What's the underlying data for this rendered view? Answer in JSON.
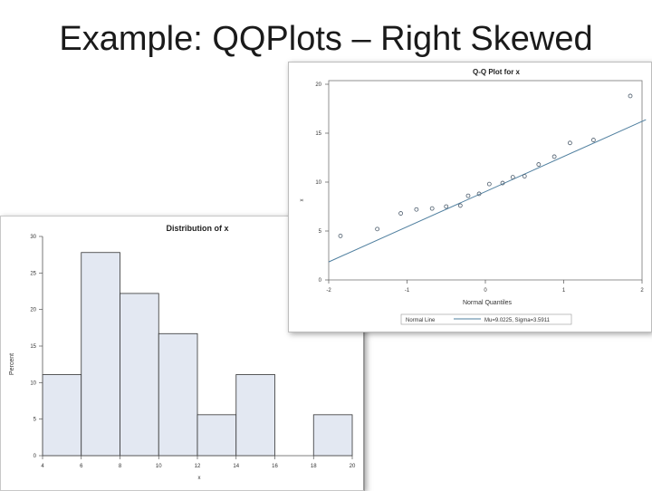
{
  "slide": {
    "title": "Example: QQPlots – Right Skewed"
  },
  "chart_data": [
    {
      "type": "bar",
      "title": "Distribution of x",
      "xlabel": "x",
      "ylabel": "Percent",
      "bin_edges": [
        4,
        6,
        8,
        10,
        12,
        14,
        16,
        18,
        20
      ],
      "values": [
        11.1,
        27.8,
        22.2,
        16.7,
        5.6,
        11.1,
        0,
        5.6
      ],
      "xticks": [
        "4",
        "6",
        "8",
        "10",
        "12",
        "14",
        "16",
        "18",
        "20"
      ],
      "yticks": [
        "0",
        "5",
        "10",
        "15",
        "20",
        "25",
        "30"
      ],
      "xlim": [
        4,
        20
      ],
      "ylim": [
        0,
        30
      ],
      "bar_color": "#e3e8f2"
    },
    {
      "type": "scatter",
      "title": "Q-Q Plot for x",
      "xlabel": "Normal Quantiles",
      "ylabel": "x",
      "xticks": [
        "-2",
        "-1",
        "0",
        "1",
        "2"
      ],
      "yticks": [
        "0",
        "5",
        "10",
        "15",
        "20"
      ],
      "xlim": [
        -2,
        2
      ],
      "ylim": [
        0,
        20
      ],
      "points": [
        {
          "x": -1.85,
          "y": 4.5
        },
        {
          "x": -1.38,
          "y": 5.2
        },
        {
          "x": -1.08,
          "y": 6.8
        },
        {
          "x": -0.88,
          "y": 7.2
        },
        {
          "x": -0.68,
          "y": 7.3
        },
        {
          "x": -0.5,
          "y": 7.5
        },
        {
          "x": -0.32,
          "y": 7.6
        },
        {
          "x": -0.22,
          "y": 8.6
        },
        {
          "x": -0.08,
          "y": 8.8
        },
        {
          "x": 0.05,
          "y": 9.8
        },
        {
          "x": 0.22,
          "y": 9.9
        },
        {
          "x": 0.35,
          "y": 10.5
        },
        {
          "x": 0.5,
          "y": 10.6
        },
        {
          "x": 0.68,
          "y": 11.8
        },
        {
          "x": 0.88,
          "y": 12.6
        },
        {
          "x": 1.08,
          "y": 14.0
        },
        {
          "x": 1.38,
          "y": 14.3
        },
        {
          "x": 1.85,
          "y": 18.8
        }
      ],
      "reference_line": {
        "mu": 9.0225,
        "sigma": 3.5911
      },
      "legend": {
        "label": "Normal Line",
        "entry": "Mu=9.0225, Sigma=3.5911",
        "position": "bottom"
      },
      "point_color": "#4a5a6a",
      "line_color": "#4f7f9f"
    }
  ]
}
